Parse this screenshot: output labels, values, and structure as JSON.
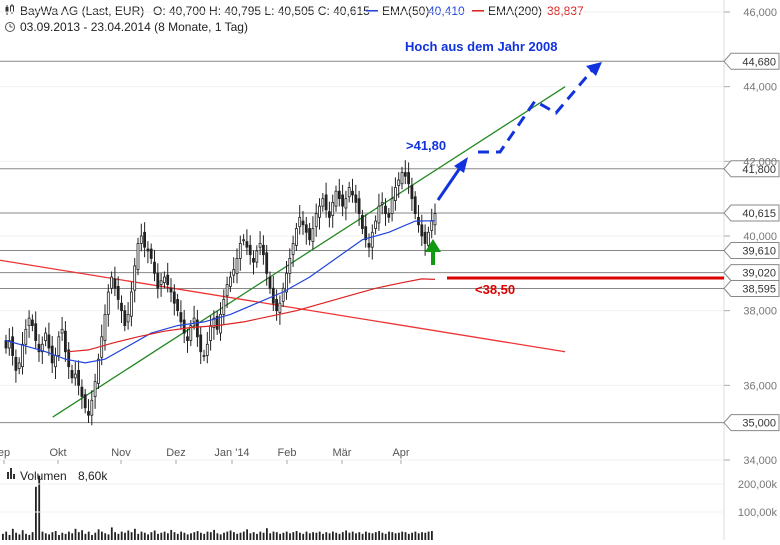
{
  "header": {
    "symbol": "BayWa AG (Last, EUR)",
    "ohlc": "O: 40,700  H: 40,795  L: 40,505  C: 40,615",
    "ema50_label": "EMA(50)",
    "ema50_value": "40,410",
    "ema200_label": "EMA(200)",
    "ema200_value": "38,837",
    "period": "03.09.2013 - 23.04.2014 (8 Monate, 1 Tag)"
  },
  "colors": {
    "candle": "#222222",
    "ema50": "#2244dd",
    "ema200": "#dd2222",
    "trend_up": "#228822",
    "trend_down": "#ee3333",
    "annotation_blue": "#1133dd",
    "annotation_red": "#dd0000",
    "arrow_green": "#119911",
    "level_line": "#888888"
  },
  "chart_data": {
    "type": "candlestick",
    "x_axis": {
      "start": "2013-09-03",
      "end": "2014-04-23",
      "labels": [
        "ep",
        "Okt",
        "Nov",
        "Dez",
        "Jan '14",
        "Feb",
        "Mär",
        "Apr"
      ]
    },
    "y_axis": {
      "ylim": [
        34.0,
        46.0
      ],
      "side": "right",
      "labels": [
        "46,000",
        "44,000",
        "42,000",
        "40,000",
        "38,000",
        "36,000",
        "34,000"
      ]
    },
    "levels": [
      {
        "value": 44.68,
        "label": "44,680"
      },
      {
        "value": 41.8,
        "label": "41,800"
      },
      {
        "value": 40.615,
        "label": "40,615"
      },
      {
        "value": 39.61,
        "label": "39,610"
      },
      {
        "value": 39.02,
        "label": "39,020"
      },
      {
        "value": 38.595,
        "label": "38,595"
      },
      {
        "value": 35.0,
        "label": "35,000"
      }
    ],
    "trendlines": [
      {
        "name": "uptrend",
        "from": [
          "2013-10-01",
          35.15
        ],
        "to": [
          "2014-06-30",
          44.0
        ]
      },
      {
        "name": "downtrend",
        "from": [
          "2013-09-03",
          39.35
        ],
        "to": [
          "2014-06-30",
          36.9
        ]
      }
    ],
    "annotations": [
      {
        "text": "Hoch aus dem Jahr 2008"
      },
      {
        "text": ">41,80"
      },
      {
        "text": "<38,50"
      }
    ],
    "closes": [
      37.0,
      37.2,
      36.8,
      36.4,
      36.6,
      37.1,
      37.5,
      37.8,
      37.6,
      37.2,
      36.9,
      37.1,
      37.4,
      37.0,
      36.6,
      36.8,
      37.3,
      37.5,
      36.9,
      36.5,
      36.2,
      36.3,
      36.0,
      35.7,
      35.4,
      35.2,
      35.6,
      36.1,
      36.7,
      37.3,
      37.9,
      38.5,
      38.9,
      38.6,
      38.3,
      38.0,
      37.6,
      37.9,
      38.5,
      39.2,
      39.8,
      40.0,
      39.7,
      39.6,
      39.4,
      39.0,
      38.6,
      38.8,
      38.9,
      38.7,
      38.5,
      38.2,
      38.0,
      37.7,
      37.4,
      37.2,
      37.6,
      37.8,
      37.3,
      36.9,
      36.8,
      37.1,
      37.6,
      37.8,
      37.5,
      37.9,
      38.3,
      38.7,
      38.9,
      39.1,
      39.4,
      39.8,
      39.9,
      39.7,
      39.5,
      39.3,
      39.6,
      39.8,
      39.5,
      39.0,
      38.6,
      38.2,
      38.0,
      38.2,
      38.6,
      39.0,
      39.4,
      39.8,
      40.2,
      40.5,
      40.3,
      40.1,
      39.9,
      40.2,
      40.6,
      40.8,
      41.0,
      40.7,
      40.5,
      40.9,
      41.2,
      41.0,
      40.8,
      41.0,
      41.3,
      41.1,
      40.9,
      40.6,
      40.2,
      39.9,
      39.7,
      40.1,
      40.4,
      40.8,
      40.9,
      40.6,
      40.5,
      41.0,
      41.3,
      41.5,
      41.7,
      41.6,
      41.4,
      41.0,
      40.6,
      40.3,
      40.0,
      39.8,
      40.1,
      40.4,
      40.6
    ],
    "ema50": [
      [
        0,
        37.2
      ],
      [
        6,
        37.05
      ],
      [
        12,
        36.9
      ],
      [
        18,
        36.7
      ],
      [
        24,
        36.6
      ],
      [
        30,
        36.7
      ],
      [
        36,
        37.0
      ],
      [
        44,
        37.4
      ],
      [
        52,
        37.6
      ],
      [
        60,
        37.7
      ],
      [
        68,
        37.9
      ],
      [
        76,
        38.2
      ],
      [
        84,
        38.5
      ],
      [
        92,
        38.9
      ],
      [
        100,
        39.4
      ],
      [
        108,
        39.9
      ],
      [
        116,
        40.1
      ],
      [
        124,
        40.4
      ],
      [
        130,
        40.41
      ]
    ],
    "ema200": [
      [
        19,
        36.9
      ],
      [
        25,
        36.95
      ],
      [
        33,
        37.15
      ],
      [
        40,
        37.3
      ],
      [
        48,
        37.45
      ],
      [
        56,
        37.55
      ],
      [
        64,
        37.6
      ],
      [
        72,
        37.7
      ],
      [
        80,
        37.85
      ],
      [
        88,
        38.0
      ],
      [
        96,
        38.2
      ],
      [
        104,
        38.4
      ],
      [
        112,
        38.6
      ],
      [
        120,
        38.75
      ],
      [
        126,
        38.85
      ],
      [
        130,
        38.837
      ]
    ],
    "volume": {
      "label": "Volumen",
      "value": "8,60k",
      "ylim": [
        0,
        250
      ],
      "tick_labels": [
        "200,00k",
        "100,00k"
      ],
      "bars": [
        22,
        30,
        18,
        40,
        26,
        20,
        35,
        22,
        18,
        28,
        190,
        230,
        30,
        24,
        20,
        28,
        32,
        18,
        26,
        22,
        30,
        24,
        40,
        28,
        35,
        22,
        30,
        18,
        26,
        38,
        30,
        24,
        20,
        45,
        28,
        22,
        30,
        26,
        34,
        28,
        40,
        22,
        30,
        26,
        20,
        28,
        34,
        22,
        26,
        30,
        24,
        36,
        28,
        22,
        30,
        26,
        20,
        24,
        28,
        32,
        26,
        22,
        30,
        28,
        36,
        24,
        20,
        26,
        30,
        34,
        28,
        22,
        26,
        30,
        38,
        24,
        28,
        22,
        30,
        26,
        42,
        24,
        30,
        28,
        22,
        26,
        30,
        24,
        28,
        32,
        26,
        22,
        30,
        24,
        28,
        26,
        30,
        22,
        28,
        24,
        30,
        26,
        22,
        28,
        34,
        26,
        30,
        24,
        28,
        22,
        30,
        26,
        24,
        28,
        32,
        26,
        22,
        30,
        28,
        24,
        26,
        30,
        28,
        22,
        26,
        30,
        24,
        28,
        26,
        30,
        32
      ]
    }
  }
}
